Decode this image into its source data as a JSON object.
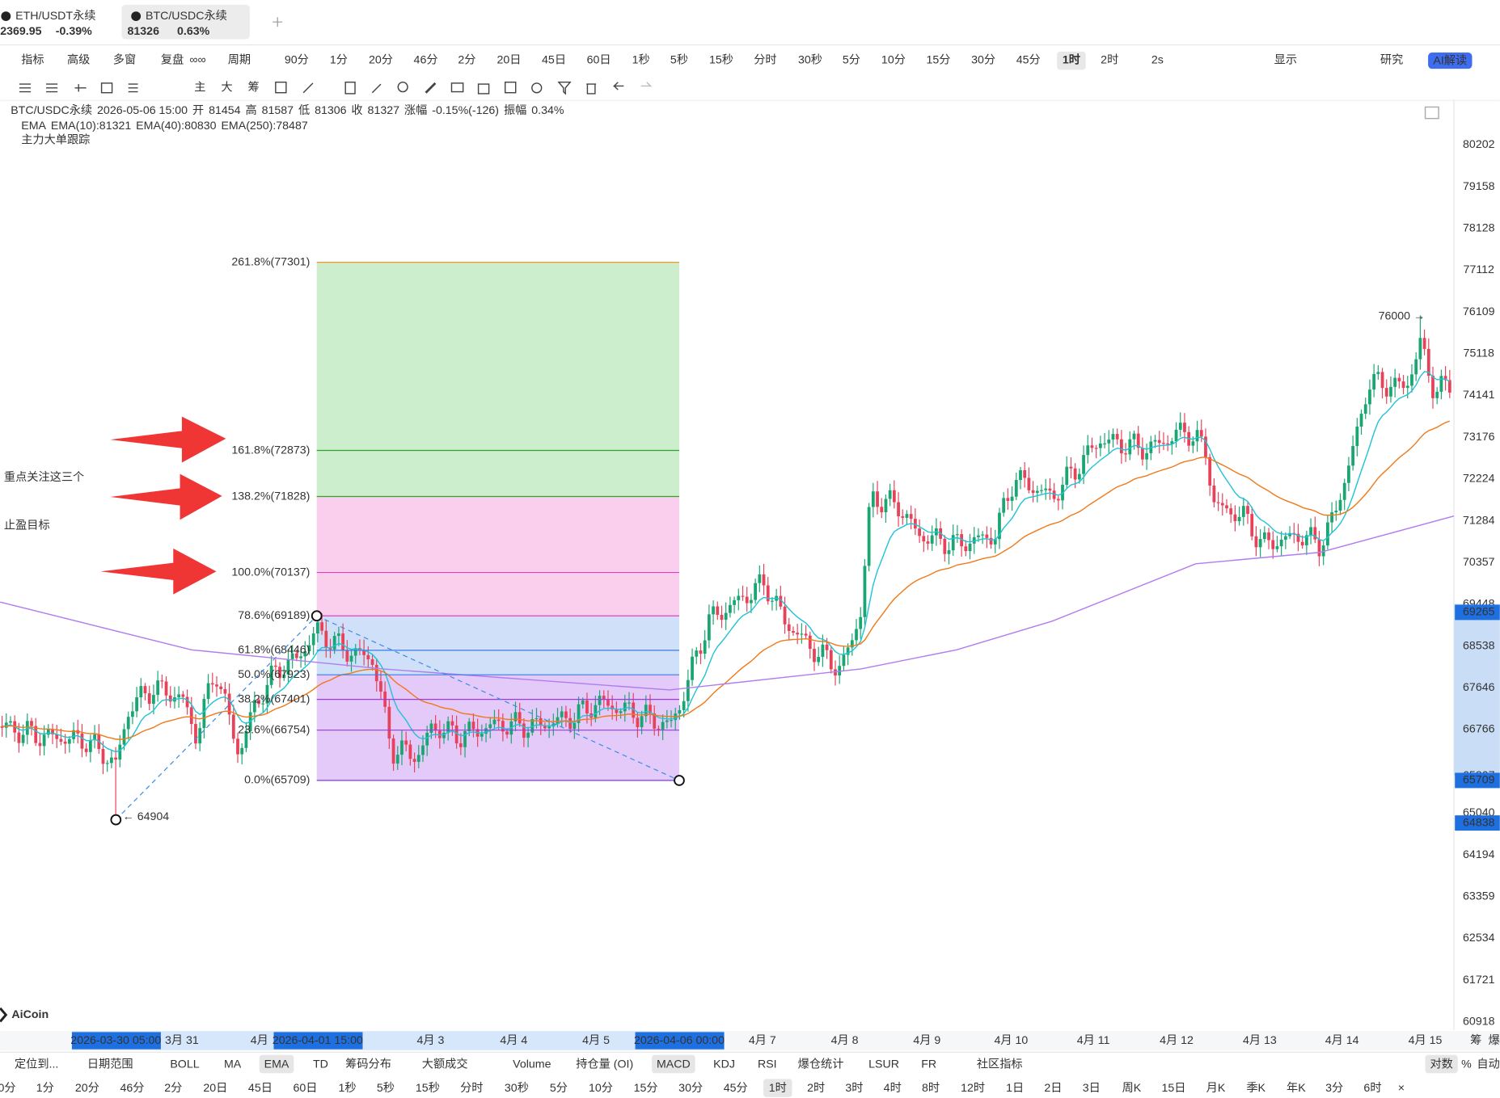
{
  "tabs": [
    {
      "symbol": "ETH/USDT永续",
      "price": "2369.95",
      "change": "-0.39%"
    },
    {
      "symbol": "BTC/USDC永续",
      "price": "81326",
      "change": "0.63%"
    }
  ],
  "toolbar": {
    "left": [
      "指标",
      "高级",
      "多窗",
      "复盘",
      "∞∞"
    ],
    "period_label": "周期",
    "periods": [
      "90分",
      "1分",
      "20分",
      "46分",
      "2分",
      "20日",
      "45日",
      "60日",
      "1秒",
      "5秒",
      "15秒",
      "分时",
      "30秒",
      "5分",
      "10分",
      "15分",
      "30分",
      "45分",
      "1时",
      "2时"
    ],
    "active": "1时",
    "right": [
      "2s",
      "显示",
      "研究"
    ],
    "ai": "AI解读"
  },
  "drawing_tools": [
    "主",
    "大",
    "筹"
  ],
  "info": [
    {
      "text": "BTC/USDC永续",
      "color": "#666"
    },
    {
      "text": "2026-05-06 15:00",
      "color": "#666"
    },
    {
      "text": "开",
      "color": "#666"
    },
    {
      "text": "81454",
      "color": "#e8425a"
    },
    {
      "text": "高",
      "color": "#666"
    },
    {
      "text": "81587",
      "color": "#e8425a"
    },
    {
      "text": "低",
      "color": "#666"
    },
    {
      "text": "81306",
      "color": "#e8425a"
    },
    {
      "text": "收",
      "color": "#666"
    },
    {
      "text": "81327",
      "color": "#e8425a"
    },
    {
      "text": "涨幅",
      "color": "#666"
    },
    {
      "text": "-0.15%(-126)",
      "color": "#e8425a"
    },
    {
      "text": "振幅",
      "color": "#666"
    },
    {
      "text": "0.34%",
      "color": "#e8425a"
    }
  ],
  "ema": [
    {
      "text": "EMA",
      "color": "#666"
    },
    {
      "text": "EMA(10):81321",
      "color": "#22c3d6"
    },
    {
      "text": "EMA(40):80830",
      "color": "#f07a1a"
    },
    {
      "text": "EMA(250):78487",
      "color": "#b07cf0"
    }
  ],
  "tracker": "主力大单跟踪",
  "annotation": [
    "重点关注这三个",
    "止盈目标"
  ],
  "fib": [
    {
      "label": "261.8%(77301)",
      "price": 77301,
      "color": "#f08a1a",
      "fill": "#fbd9b0"
    },
    {
      "label": "161.8%(72873)",
      "price": 72873,
      "color": "#2aa52a",
      "fill": "#bfeac1"
    },
    {
      "label": "138.2%(71828)",
      "price": 71828,
      "color": "#2aa52a",
      "fill": "#bfeac1"
    },
    {
      "label": "100.0%(70137)",
      "price": 70137,
      "color": "#e040c0",
      "fill": "#f8c3e8"
    },
    {
      "label": "78.6%(69189)",
      "price": 69189,
      "color": "#e040c0",
      "fill": "#f8c3e8"
    },
    {
      "label": "61.8%(68446)",
      "price": 68446,
      "color": "#3a7de0",
      "fill": "#c3d8f6"
    },
    {
      "label": "50.0%(67923)",
      "price": 67923,
      "color": "#3a7de0",
      "fill": "#c3d8f6"
    },
    {
      "label": "38.2%(67401)",
      "price": 67401,
      "color": "#9a3ae0",
      "fill": "#dcbdf6"
    },
    {
      "label": "23.6%(66754)",
      "price": 66754,
      "color": "#9a3ae0",
      "fill": "#dcbdf6"
    },
    {
      "label": "0.0%(65709)",
      "price": 65709,
      "color": "#6a2ae0",
      "fill": "#dcbdf6"
    }
  ],
  "extremes": [
    {
      "label": "76000 →",
      "price": 76000
    },
    {
      "label": "← 64904",
      "price": 64904
    }
  ],
  "price_ticks": [
    80202,
    79158,
    78128,
    77112,
    76109,
    75118,
    74141,
    73176,
    72224,
    71284,
    70357,
    69448,
    68538,
    67646,
    66766,
    65807,
    65040,
    64194,
    63359,
    62534,
    61721,
    60918
  ],
  "price_marks": [
    69265,
    65709,
    64838
  ],
  "date_axis": [
    "2026-03-30 05:00",
    "3月 31",
    "4月",
    "2026-04-01 15:00",
    "4月 3",
    "4月 4",
    "4月 5",
    "2026-04-06 00:00",
    "4月 7",
    "4月 8",
    "4月 9",
    "4月 10",
    "4月 11",
    "4月 12",
    "4月 13",
    "4月 14",
    "4月 15",
    "筹",
    "爆"
  ],
  "logo": "AiCoin",
  "indicators": {
    "items": [
      "定位到...",
      "日期范围",
      "BOLL",
      "MA",
      "EMA",
      "TD",
      "筹码分布",
      "大额成交",
      "Volume",
      "持仓量 (OI)",
      "MACD",
      "KDJ",
      "RSI",
      "爆仓统计",
      "LSUR",
      "FR",
      "社区指标",
      "对数",
      "%",
      "自动"
    ],
    "active": [
      "EMA",
      "MACD",
      "对数"
    ]
  },
  "bottom_periods": {
    "items": [
      "0分",
      "1分",
      "20分",
      "46分",
      "2分",
      "20日",
      "45日",
      "60日",
      "1秒",
      "5秒",
      "15秒",
      "分时",
      "30秒",
      "5分",
      "10分",
      "15分",
      "30分",
      "45分",
      "1时",
      "2时",
      "3时",
      "4时",
      "8时",
      "12时",
      "1日",
      "2日",
      "3日",
      "周K",
      "15日",
      "月K",
      "季K",
      "年K",
      "3分",
      "6时",
      "×"
    ],
    "active": "1时"
  }
}
